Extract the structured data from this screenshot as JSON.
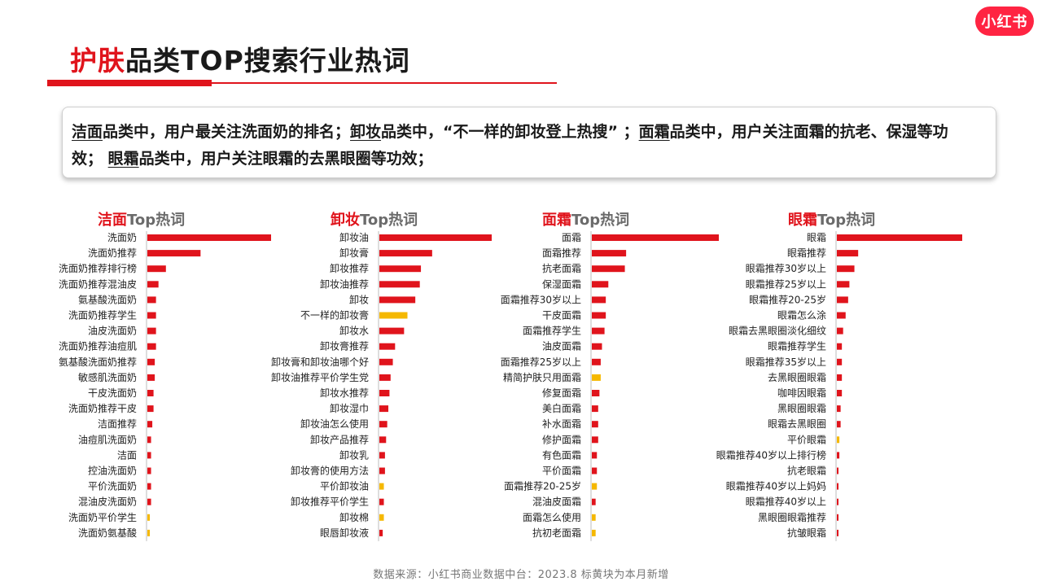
{
  "logo": "小红书",
  "title": {
    "highlight": "护肤",
    "rest": "品类TOP搜索行业热词"
  },
  "summary": {
    "p1_u": "洁面",
    "p1": "品类中，用户最关注洗面奶的排名；",
    "p2_u": "卸妆",
    "p2": "品类中，“不一样的卸妆登上热搜” ；",
    "p3_u": "面霜",
    "p3": "品类中，用户关注面霜的抗老、保湿等功效；",
    "p4_u": "眼霜",
    "p4": "品类中，用户关注眼霜的去黑眼圈等功效；"
  },
  "colors": {
    "accent": "#e0141c",
    "new_term": "#f5b800"
  },
  "footer": "数据来源：小红书商业数据中台：2023.8 标黄块为本月新增",
  "chart_data": [
    {
      "type": "bar",
      "orientation": "horizontal",
      "title_highlight": "洁面",
      "title_rest": "Top热词",
      "categories": [
        "洗面奶",
        "洗面奶推荐",
        "洗面奶推荐排行榜",
        "洗面奶推荐混油皮",
        "氨基酸洗面奶",
        "洗面奶推荐学生",
        "油皮洗面奶",
        "洗面奶推荐油痘肌",
        "氨基酸洗面奶推荐",
        "敏感肌洗面奶",
        "干皮洗面奶",
        "洗面奶推荐干皮",
        "洁面推荐",
        "油痘肌洗面奶",
        "洁面",
        "控油洗面奶",
        "平价洗面奶",
        "混油皮洗面奶",
        "洗面奶平价学生",
        "洗面奶氨基酸"
      ],
      "values": [
        100,
        43,
        15,
        9,
        7,
        7,
        7,
        7,
        6,
        6,
        5,
        5,
        4,
        3,
        3,
        3,
        3,
        3,
        2,
        2
      ],
      "new": [
        false,
        false,
        false,
        false,
        false,
        false,
        false,
        false,
        false,
        false,
        false,
        false,
        false,
        false,
        false,
        false,
        false,
        false,
        true,
        true
      ]
    },
    {
      "type": "bar",
      "orientation": "horizontal",
      "title_highlight": "卸妆",
      "title_rest": "Top热词",
      "categories": [
        "卸妆油",
        "卸妆膏",
        "卸妆推荐",
        "卸妆油推荐",
        "卸妆",
        "不一样的卸妆膏",
        "卸妆水",
        "卸妆膏推荐",
        "卸妆膏和卸妆油哪个好",
        "卸妆油推荐平价学生党",
        "卸妆水推荐",
        "卸妆湿巾",
        "卸妆油怎么使用",
        "卸妆产品推荐",
        "卸妆乳",
        "卸妆膏的使用方法",
        "平价卸妆油",
        "卸妆推荐平价学生",
        "卸妆棉",
        "眼唇卸妆液"
      ],
      "values": [
        100,
        47,
        37,
        36,
        32,
        25,
        22,
        14,
        12,
        10,
        9,
        8,
        7,
        6,
        5,
        5,
        4,
        4,
        4,
        3
      ],
      "new": [
        false,
        false,
        false,
        false,
        false,
        true,
        false,
        false,
        false,
        false,
        false,
        false,
        false,
        false,
        false,
        false,
        true,
        false,
        true,
        false
      ]
    },
    {
      "type": "bar",
      "orientation": "horizontal",
      "title_highlight": "面霜",
      "title_rest": "Top热词",
      "categories": [
        "面霜",
        "面霜推荐",
        "抗老面霜",
        "保湿面霜",
        "面霜推荐30岁以上",
        "干皮面霜",
        "面霜推荐学生",
        "油皮面霜",
        "面霜推荐25岁以上",
        "精简护肤只用面霜",
        "修复面霜",
        "美白面霜",
        "补水面霜",
        "修护面霜",
        "有色面霜",
        "平价面霜",
        "面霜推荐20-25岁",
        "混油皮面霜",
        "面霜怎么使用",
        "抗初老面霜"
      ],
      "values": [
        100,
        27,
        26,
        13,
        11,
        11,
        10,
        8,
        7,
        7,
        6,
        5,
        5,
        5,
        4,
        4,
        4,
        3,
        3,
        3
      ],
      "new": [
        false,
        false,
        false,
        false,
        false,
        false,
        false,
        false,
        false,
        true,
        false,
        false,
        false,
        false,
        false,
        false,
        true,
        false,
        true,
        true
      ]
    },
    {
      "type": "bar",
      "orientation": "horizontal",
      "title_highlight": "眼霜",
      "title_rest": "Top热词",
      "categories": [
        "眼霜",
        "眼霜推荐",
        "眼霜推荐30岁以上",
        "眼霜推荐25岁以上",
        "眼霜推荐20-25岁",
        "眼霜怎么涂",
        "眼霜去黑眼圈淡化细纹",
        "眼霜推荐学生",
        "眼霜推荐35岁以上",
        "去黑眼圈眼霜",
        "咖啡因眼霜",
        "黑眼圈眼霜",
        "眼霜去黑眼圈",
        "平价眼霜",
        "眼霜推荐40岁以上排行榜",
        "抗老眼霜",
        "眼霜推荐40岁以上妈妈",
        "眼霜推荐40岁以上",
        "黑眼圈眼霜推荐",
        "抗皱眼霜"
      ],
      "values": [
        100,
        17,
        14,
        10,
        9,
        7,
        5,
        4,
        4,
        4,
        4,
        3,
        3,
        2,
        2,
        1,
        1,
        1,
        1,
        1
      ],
      "new": [
        false,
        false,
        false,
        false,
        false,
        false,
        false,
        false,
        false,
        false,
        false,
        false,
        false,
        true,
        false,
        false,
        false,
        false,
        false,
        false
      ]
    }
  ]
}
